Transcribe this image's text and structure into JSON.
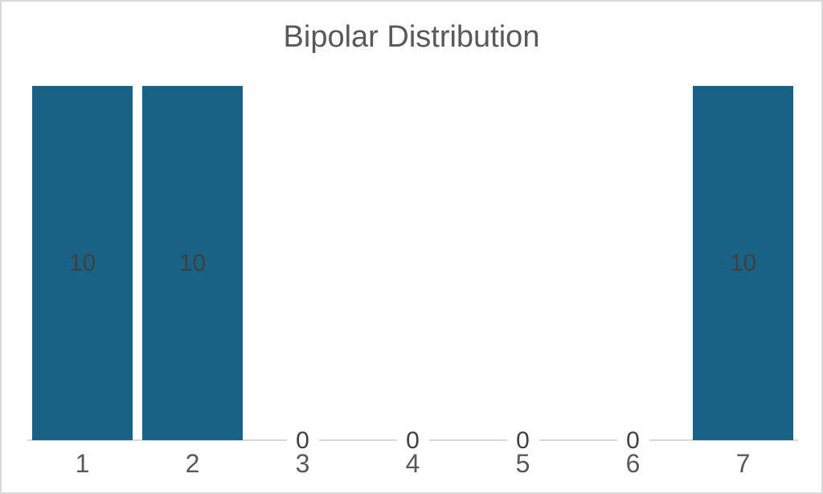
{
  "frame": {
    "border_color": "#D9D9D9",
    "background": "#FFFFFF"
  },
  "chart_data": {
    "type": "bar",
    "title": "Bipolar Distribution",
    "categories": [
      "1",
      "2",
      "3",
      "4",
      "5",
      "6",
      "7"
    ],
    "values": [
      10,
      10,
      0,
      0,
      0,
      0,
      10
    ],
    "data_labels": [
      "10",
      "10",
      "0",
      "0",
      "0",
      "0",
      "10"
    ],
    "xlabel": "",
    "ylabel": "",
    "ylim": [
      0,
      10
    ],
    "grid": false,
    "legend": "none",
    "data_label_position": "center",
    "bar_color": "#1A6285",
    "title_color": "#595959",
    "data_label_color": "#404040",
    "axis_tick_color": "#595959",
    "axis_line_color": "#D9D9D9"
  }
}
